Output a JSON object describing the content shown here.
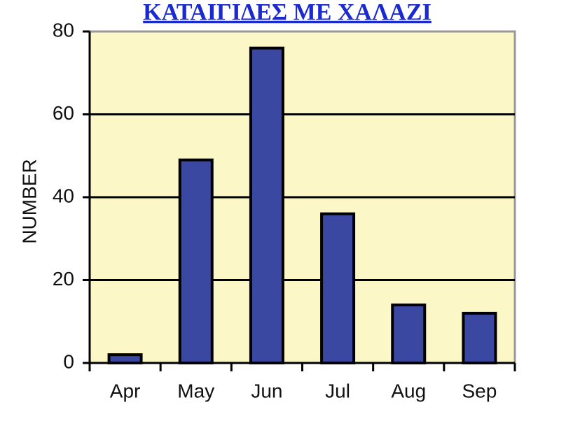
{
  "chart_data": {
    "type": "bar",
    "title": "ΚΑΤΑΙΓΙΔΕΣ ΜΕ ΧΑΛΑΖΙ",
    "y_label": "NUMBER",
    "categories": [
      "Apr",
      "May",
      "Jun",
      "Jul",
      "Aug",
      "Sep"
    ],
    "values": [
      2,
      49,
      76,
      36,
      14,
      12
    ],
    "color": "#3a48a2",
    "ylim": [
      0,
      80
    ],
    "yticks": [
      0,
      20,
      40,
      60,
      80
    ],
    "grid": true
  }
}
